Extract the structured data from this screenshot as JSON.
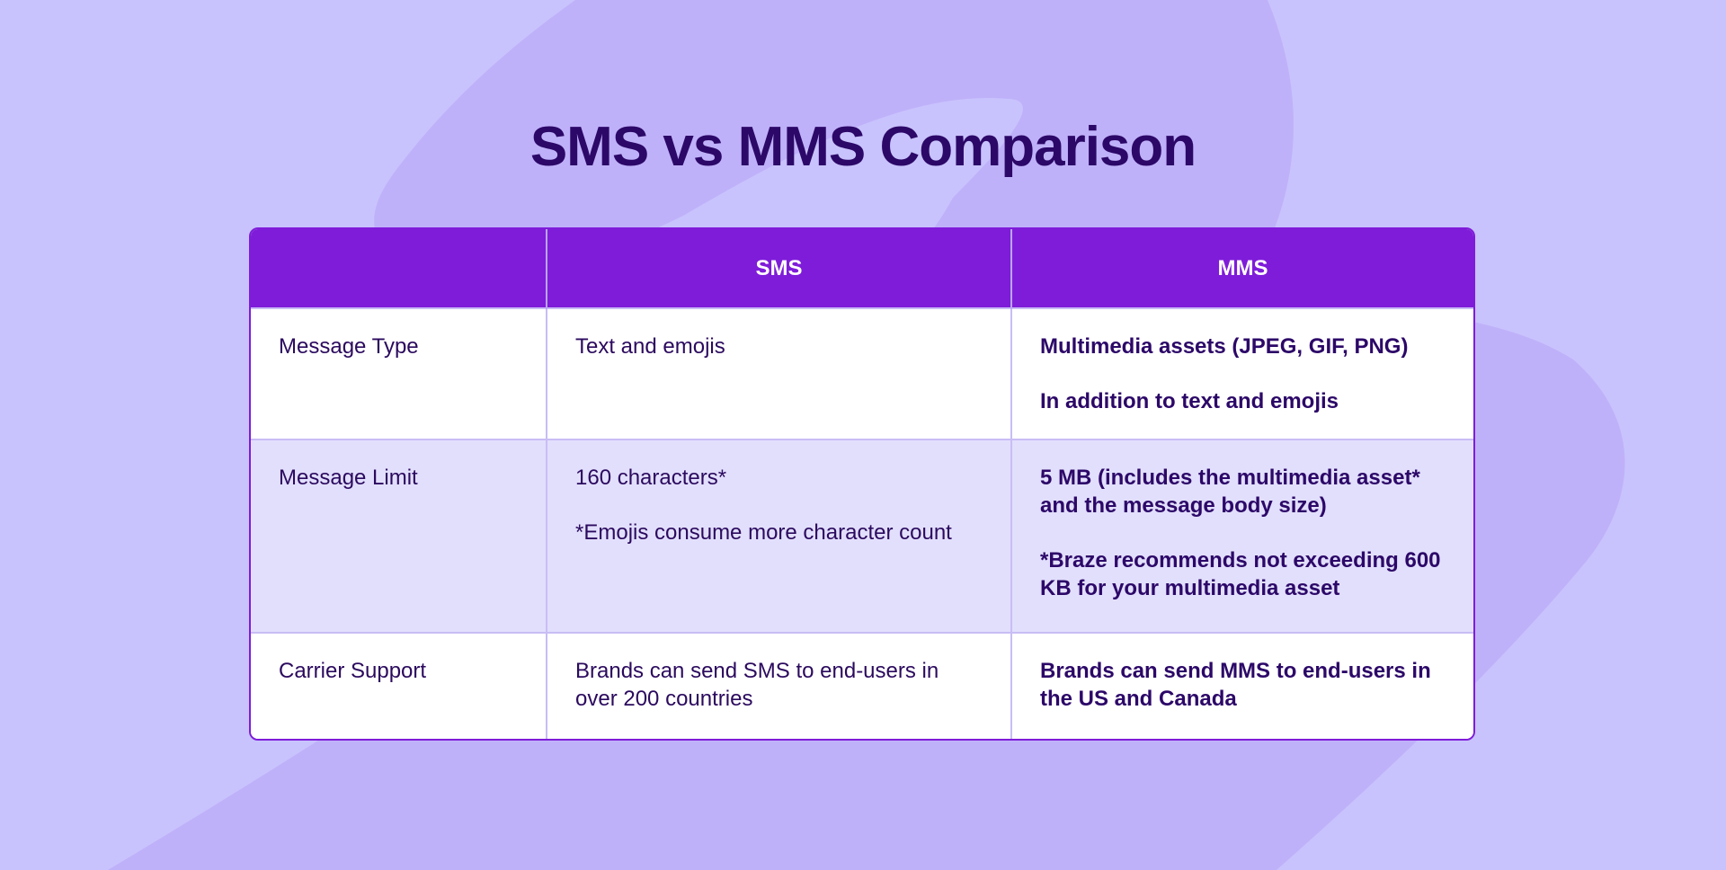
{
  "title": "SMS vs MMS Comparison",
  "colors": {
    "background": "#c8c3fd",
    "background_shape": "#bfb1f9",
    "header": "#7f1cd9",
    "title_text": "#2c0868",
    "row_alt": "#e2dffd"
  },
  "table": {
    "headers": [
      "",
      "SMS",
      "MMS"
    ],
    "rows": [
      {
        "label": "Message Type",
        "sms": [
          "Text and emojis"
        ],
        "mms": [
          "Multimedia assets (JPEG, GIF, PNG)",
          "In addition to text and emojis"
        ]
      },
      {
        "label": "Message Limit",
        "sms": [
          "160 characters*",
          "*Emojis consume more character count"
        ],
        "mms": [
          "5 MB (includes the multimedia asset* and the message body size)",
          "*Braze recommends not exceeding 600 KB for your multimedia asset"
        ]
      },
      {
        "label": "Carrier Support",
        "sms": [
          "Brands can send SMS to end-users in over 200 countries"
        ],
        "mms": [
          "Brands can send MMS to end-users in the US and Canada"
        ]
      }
    ]
  }
}
